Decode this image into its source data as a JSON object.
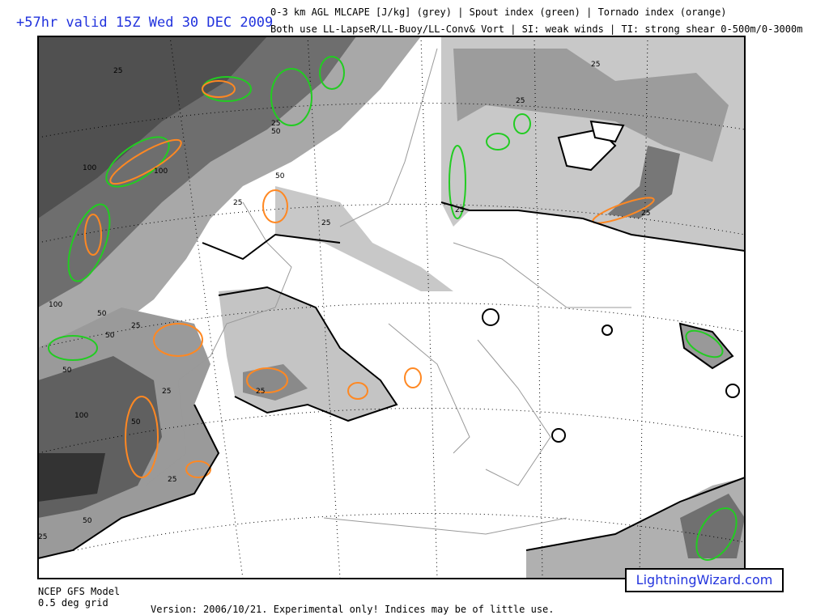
{
  "header": {
    "valid_time": "+57hr valid 15Z Wed 30 DEC 2009",
    "line1": "0-3 km AGL MLCAPE [J/kg] (grey) | Spout index (green) | Tornado index (orange)",
    "line2": "Both use LL-LapseR/LL-Buoy/LL-Conv& Vort | SI: weak winds | TI: strong shear 0-500m/0-3000m"
  },
  "footer": {
    "model": "NCEP GFS Model",
    "grid": "0.5 deg grid",
    "version": "Version: 2006/10/21.  Experimental only! Indices may be of little use.",
    "brand": "LightningWizard.com"
  },
  "legend_colors": {
    "mlcape": "#808080",
    "spout_index": "#22cc22",
    "tornado_index": "#ff8822"
  },
  "contour_labels": [
    "25",
    "25",
    "50",
    "100",
    "100",
    "25",
    "50",
    "25",
    "25",
    "25",
    "100",
    "50",
    "50",
    "25",
    "50",
    "100",
    "50",
    "25",
    "25",
    "25",
    "25",
    "25",
    "50",
    "25"
  ]
}
